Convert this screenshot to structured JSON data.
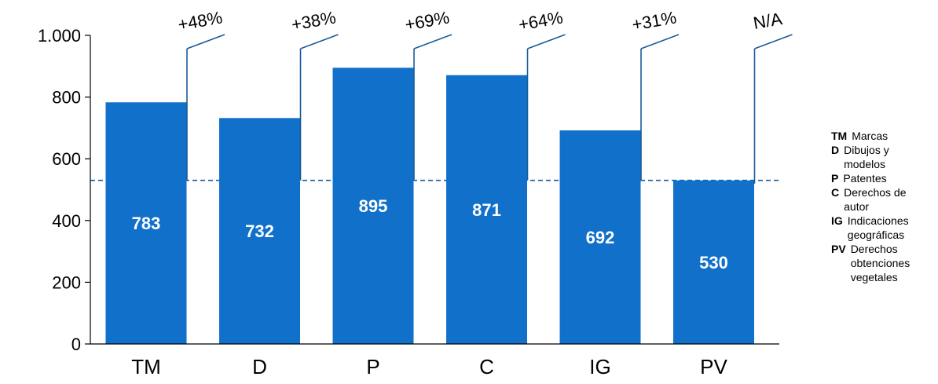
{
  "chart_data": {
    "type": "bar",
    "categories": [
      "TM",
      "D",
      "P",
      "C",
      "IG",
      "PV"
    ],
    "values": [
      783,
      732,
      895,
      871,
      692,
      530
    ],
    "value_labels": [
      "783",
      "732",
      "895",
      "871",
      "692",
      "530"
    ],
    "change_labels": [
      "+48%",
      "+38%",
      "+69%",
      "+64%",
      "+31%",
      "N/A"
    ],
    "y_ticks": [
      {
        "value": 0,
        "label": "0"
      },
      {
        "value": 200,
        "label": "200"
      },
      {
        "value": 400,
        "label": "400"
      },
      {
        "value": 600,
        "label": "600"
      },
      {
        "value": 800,
        "label": "800"
      },
      {
        "value": 1000,
        "label": "1.000"
      }
    ],
    "ylim": [
      0,
      1000
    ],
    "reference_line": 530,
    "grid": false,
    "bar_color": "#1170c9",
    "line_color": "#1a5b9a",
    "reference_color": "#1a5b9a"
  },
  "legend": {
    "placement": "right",
    "items": [
      {
        "code": "TM",
        "text": "Marcas"
      },
      {
        "code": "D",
        "text": "Dibujos y modelos"
      },
      {
        "code": "P",
        "text": "Patentes"
      },
      {
        "code": "C",
        "text": "Derechos de autor"
      },
      {
        "code": "IG",
        "text": "Indicaciones geográficas"
      },
      {
        "code": "PV",
        "text": "Derechos obtenciones vegetales"
      }
    ]
  }
}
